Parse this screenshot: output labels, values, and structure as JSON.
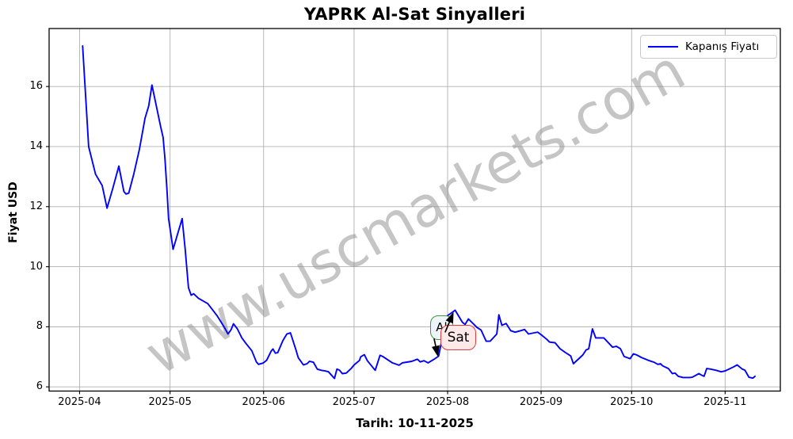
{
  "title": "YAPRK Al-Sat Sinyalleri",
  "watermark": "www.uscmarkets.com",
  "y_axis_label": "Fiyat USD",
  "x_axis_label": "Tarih: 10-11-2025",
  "legend": {
    "label": "Kapanış Fiyatı"
  },
  "annotations": {
    "buy_label": "Al",
    "sell_label": "Sat"
  },
  "colors": {
    "line": "#0000ff",
    "grid": "#b0b0b0",
    "spine": "#000000",
    "watermark": "#8c8c8c",
    "buy_edge": "#3d9c40",
    "buy_fill": "#edf4fa",
    "sell_edge": "#e23b3b",
    "sell_fill": "#fce9e8",
    "arrow": "#000000"
  },
  "chart_data": {
    "type": "line",
    "title": "YAPRK Al-Sat Sinyalleri",
    "xlabel": "Tarih: 10-11-2025",
    "ylabel": "Fiyat USD",
    "grid": true,
    "legend_position": "upper right",
    "x_unit": "days since 2025-04-01",
    "x_range": [
      -10.1,
      232.3
    ],
    "y_range": [
      5.86,
      17.93
    ],
    "x_ticks": [
      {
        "label": "2025-04",
        "day": 0
      },
      {
        "label": "2025-05",
        "day": 30
      },
      {
        "label": "2025-06",
        "day": 61
      },
      {
        "label": "2025-07",
        "day": 91
      },
      {
        "label": "2025-08",
        "day": 122
      },
      {
        "label": "2025-09",
        "day": 153
      },
      {
        "label": "2025-10",
        "day": 183
      },
      {
        "label": "2025-11",
        "day": 214
      }
    ],
    "y_ticks": [
      6,
      8,
      10,
      12,
      14,
      16
    ],
    "series": [
      {
        "name": "Kapanış Fiyatı",
        "color": "#0000ff",
        "points": [
          [
            1,
            17.35
          ],
          [
            3,
            14.0
          ],
          [
            5.3,
            13.08
          ],
          [
            7.5,
            12.7
          ],
          [
            9.1,
            11.95
          ],
          [
            11,
            12.6
          ],
          [
            13,
            13.35
          ],
          [
            14.7,
            12.5
          ],
          [
            15.4,
            12.42
          ],
          [
            16.3,
            12.45
          ],
          [
            18,
            13.1
          ],
          [
            19.8,
            13.9
          ],
          [
            21.7,
            14.95
          ],
          [
            22.9,
            15.35
          ],
          [
            24,
            16.05
          ],
          [
            26.8,
            14.7
          ],
          [
            27.7,
            14.3
          ],
          [
            28.3,
            13.6
          ],
          [
            29,
            12.5
          ],
          [
            29.5,
            11.6
          ],
          [
            31,
            10.58
          ],
          [
            34,
            11.6
          ],
          [
            35,
            10.6
          ],
          [
            36.1,
            9.3
          ],
          [
            37,
            9.05
          ],
          [
            37.8,
            9.1
          ],
          [
            39.4,
            8.95
          ],
          [
            42.5,
            8.77
          ],
          [
            45.7,
            8.35
          ],
          [
            48,
            7.98
          ],
          [
            49.2,
            7.76
          ],
          [
            50.2,
            7.9
          ],
          [
            51,
            8.1
          ],
          [
            52.3,
            7.93
          ],
          [
            53.8,
            7.63
          ],
          [
            55.1,
            7.45
          ],
          [
            57.1,
            7.2
          ],
          [
            58.6,
            6.83
          ],
          [
            59.3,
            6.75
          ],
          [
            60.8,
            6.79
          ],
          [
            62,
            6.88
          ],
          [
            63.5,
            7.19
          ],
          [
            64.1,
            7.26
          ],
          [
            64.9,
            7.12
          ],
          [
            65.7,
            7.14
          ],
          [
            67.4,
            7.54
          ],
          [
            68.7,
            7.76
          ],
          [
            69.9,
            7.8
          ],
          [
            71.6,
            7.27
          ],
          [
            72.5,
            6.97
          ],
          [
            74.2,
            6.73
          ],
          [
            75.4,
            6.77
          ],
          [
            76.2,
            6.85
          ],
          [
            77.5,
            6.82
          ],
          [
            78.8,
            6.59
          ],
          [
            80.1,
            6.55
          ],
          [
            81.4,
            6.53
          ],
          [
            82.5,
            6.5
          ],
          [
            83.6,
            6.38
          ],
          [
            84.5,
            6.28
          ],
          [
            85.3,
            6.59
          ],
          [
            86.2,
            6.55
          ],
          [
            87.1,
            6.44
          ],
          [
            88.4,
            6.46
          ],
          [
            90,
            6.61
          ],
          [
            91,
            6.73
          ],
          [
            92.8,
            6.88
          ],
          [
            93.2,
            7.0
          ],
          [
            94.4,
            7.07
          ],
          [
            95.4,
            6.87
          ],
          [
            98,
            6.55
          ],
          [
            99.6,
            7.05
          ],
          [
            100.7,
            7.0
          ],
          [
            103.7,
            6.8
          ],
          [
            105.9,
            6.72
          ],
          [
            107,
            6.8
          ],
          [
            110.1,
            6.85
          ],
          [
            112,
            6.92
          ],
          [
            112.9,
            6.83
          ],
          [
            114.2,
            6.87
          ],
          [
            115.5,
            6.8
          ],
          [
            117.7,
            6.93
          ],
          [
            119,
            7.02
          ],
          [
            121.7,
            8.35
          ],
          [
            124.5,
            8.55
          ],
          [
            126.9,
            8.15
          ],
          [
            127.8,
            8.08
          ],
          [
            128.9,
            8.26
          ],
          [
            131.7,
            7.98
          ],
          [
            133.1,
            7.89
          ],
          [
            134.8,
            7.52
          ],
          [
            136.1,
            7.52
          ],
          [
            138.3,
            7.76
          ],
          [
            139,
            8.4
          ],
          [
            140,
            8.05
          ],
          [
            141.4,
            8.11
          ],
          [
            142.9,
            7.87
          ],
          [
            144.4,
            7.82
          ],
          [
            146.2,
            7.87
          ],
          [
            147.5,
            7.91
          ],
          [
            148.8,
            7.76
          ],
          [
            150.7,
            7.8
          ],
          [
            151.9,
            7.82
          ],
          [
            153.2,
            7.72
          ],
          [
            154.9,
            7.58
          ],
          [
            155.8,
            7.49
          ],
          [
            157.6,
            7.47
          ],
          [
            159.3,
            7.27
          ],
          [
            161.1,
            7.14
          ],
          [
            162.8,
            7.03
          ],
          [
            163.7,
            6.77
          ],
          [
            166.8,
            7.06
          ],
          [
            167.9,
            7.23
          ],
          [
            168.8,
            7.27
          ],
          [
            170,
            7.93
          ],
          [
            171.1,
            7.63
          ],
          [
            173.8,
            7.63
          ],
          [
            176.7,
            7.32
          ],
          [
            177.9,
            7.35
          ],
          [
            179.3,
            7.27
          ],
          [
            180.5,
            7.01
          ],
          [
            182.5,
            6.94
          ],
          [
            183.6,
            7.1
          ],
          [
            184.7,
            7.06
          ],
          [
            186.4,
            6.97
          ],
          [
            188.6,
            6.88
          ],
          [
            190.4,
            6.82
          ],
          [
            191.7,
            6.75
          ],
          [
            192.6,
            6.77
          ],
          [
            193.3,
            6.7
          ],
          [
            195.2,
            6.61
          ],
          [
            196.5,
            6.44
          ],
          [
            197.4,
            6.46
          ],
          [
            198.5,
            6.35
          ],
          [
            200.1,
            6.31
          ],
          [
            202.2,
            6.31
          ],
          [
            203.1,
            6.32
          ],
          [
            205.3,
            6.44
          ],
          [
            206.4,
            6.38
          ],
          [
            207,
            6.35
          ],
          [
            207.9,
            6.61
          ],
          [
            209.2,
            6.59
          ],
          [
            211,
            6.55
          ],
          [
            212.7,
            6.5
          ],
          [
            214,
            6.53
          ],
          [
            216.7,
            6.66
          ],
          [
            218,
            6.73
          ],
          [
            219.7,
            6.59
          ],
          [
            220.6,
            6.55
          ],
          [
            221.9,
            6.32
          ],
          [
            223.2,
            6.29
          ],
          [
            223.9,
            6.35
          ]
        ]
      }
    ],
    "signals": [
      {
        "type": "buy",
        "label": "Al",
        "day": 118.7,
        "price": 7.0
      },
      {
        "type": "sell",
        "label": "Sat",
        "day": 123.8,
        "price": 8.5
      }
    ]
  }
}
